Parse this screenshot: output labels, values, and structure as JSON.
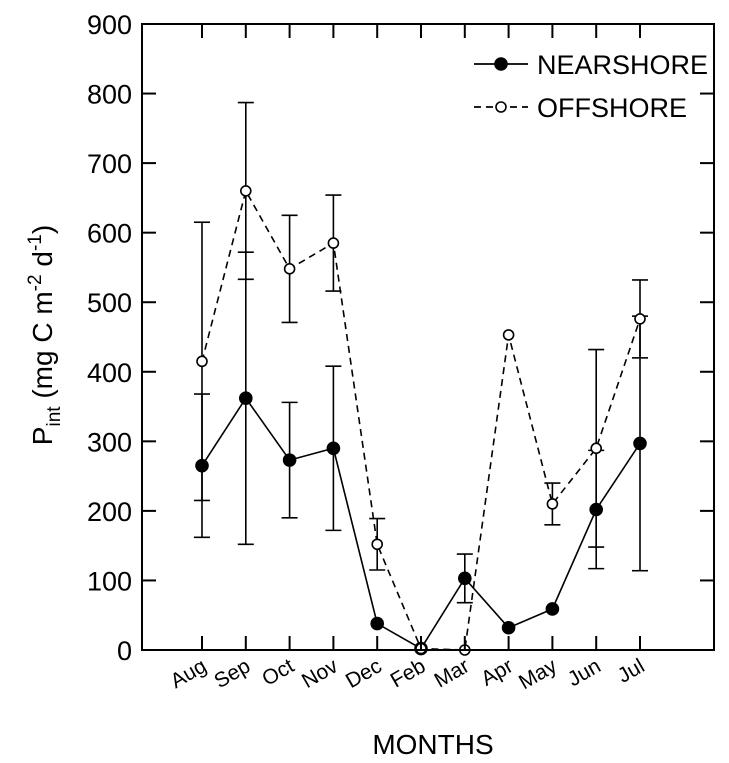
{
  "chart_data": {
    "type": "line",
    "xlabel": "MONTHS",
    "ylabel": {
      "base": "P",
      "base_sub": "int",
      "unit_open": " (mg C m",
      "unit_exp1": "-2",
      "unit_mid": " d",
      "unit_exp2": "-1",
      "unit_close": ")"
    },
    "ylim": [
      0,
      900
    ],
    "yticks": [
      0,
      100,
      200,
      300,
      400,
      500,
      600,
      700,
      800,
      900
    ],
    "categories": [
      "Aug",
      "Sep",
      "Oct",
      "Nov",
      "Dec",
      "Feb",
      "Mar",
      "Apr",
      "May",
      "Jun",
      "Jul"
    ],
    "grid": false,
    "legend_position": "top-right",
    "series": [
      {
        "name": "NEARSHORE",
        "style": "solid",
        "marker": "filled-circle",
        "color": "#000000",
        "values": [
          265,
          362,
          273,
          290,
          38,
          2,
          103,
          32,
          59,
          202,
          297
        ],
        "errors": [
          103,
          210,
          83,
          118,
          0,
          0,
          35,
          0,
          0,
          85,
          183
        ]
      },
      {
        "name": "OFFSHORE",
        "style": "dashed",
        "marker": "open-circle",
        "color": "#000000",
        "values": [
          415,
          660,
          548,
          585,
          152,
          2,
          0,
          453,
          210,
          290,
          476
        ],
        "errors": [
          200,
          127,
          77,
          69,
          37,
          0,
          0,
          0,
          30,
          142,
          56
        ]
      }
    ]
  }
}
